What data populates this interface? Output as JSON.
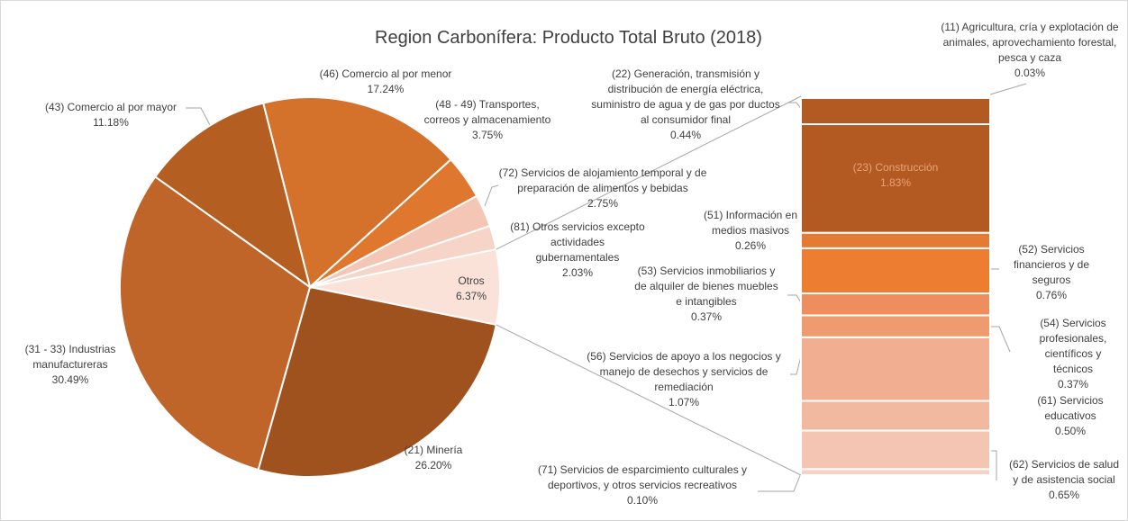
{
  "chart_data": {
    "type": "pie",
    "title": "Region Carbonífera: Producto Total Bruto (2018)",
    "categories": [
      "(46) Comercio al por menor",
      "(48 - 49) Transportes, correos y almacenamiento",
      "(72) Servicios de alojamiento temporal y de preparación de alimentos y bebidas",
      "(81) Otros servicios excepto actividades gubernamentales",
      "Otros",
      "(21) Minería",
      "(31 - 33) Industrias manufactureras",
      "(43) Comercio al por mayor"
    ],
    "values": [
      17.24,
      3.75,
      2.75,
      2.03,
      6.37,
      26.2,
      30.49,
      11.18
    ],
    "value_labels": [
      "17.24%",
      "3.75%",
      "2.75%",
      "2.03%",
      "6.37%",
      "26.20%",
      "30.49%",
      "11.18%"
    ],
    "colors": [
      "#d4712b",
      "#e0772f",
      "#f3c6b5",
      "#f6d4c7",
      "#fbe2d9",
      "#a0521e",
      "#c0652a",
      "#b55e22"
    ],
    "breakdown": {
      "categories": [
        "(11) Agricultura, cría y explotación de animales, aprovechamiento forestal, pesca y caza",
        "(22) Generación, transmisión y distribución de energía eléctrica, suministro de agua y de gas por ductos al consumidor final",
        "(23) Construcción",
        "(51) Información en medios masivos",
        "(52) Servicios financieros y de seguros",
        "(53) Servicios inmobiliarios y de alquiler de bienes muebles e intangibles",
        "(54) Servicios profesionales, científicos y técnicos",
        "(56) Servicios de apoyo a los negocios y manejo de desechos y servicios de remediación",
        "(61) Servicios educativos",
        "(62) Servicios de salud y de asistencia social",
        "(71) Servicios de esparcimiento culturales y deportivos, y otros servicios recreativos"
      ],
      "values": [
        0.03,
        0.44,
        1.83,
        0.26,
        0.76,
        0.37,
        0.37,
        1.07,
        0.5,
        0.65,
        0.1
      ],
      "value_labels": [
        "0.03%",
        "0.44%",
        "1.83%",
        "0.26%",
        "0.76%",
        "0.37%",
        "0.37%",
        "1.07%",
        "0.50%",
        "0.65%",
        "0.10%"
      ],
      "colors": [
        "#8f4716",
        "#b35a22",
        "#b35a22",
        "#e37b35",
        "#ed7d31",
        "#ee8e5e",
        "#ef9b70",
        "#f1ae90",
        "#f2b9a1",
        "#f4c5b2",
        "#f7d3c5"
      ]
    }
  }
}
